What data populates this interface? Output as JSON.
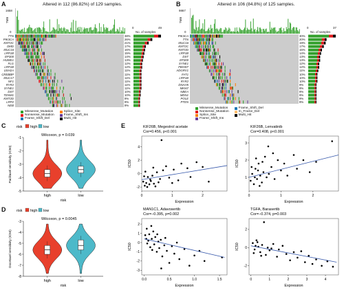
{
  "panelA": {
    "letter": "A",
    "title": "Altered in 112 (86.82%) of 129 samples.",
    "tmb_label": "TMB",
    "tmb_max": "1658",
    "tmb_zero": "0",
    "samples_zero": "0",
    "samples_max": "49",
    "samples_label": "No. of samples",
    "genes": [
      "TTN",
      "PIK3CA",
      "KMT2C",
      "DMD",
      "MUC16",
      "LRP1B",
      "EP300",
      "HUWE1",
      "FLG",
      "LRP1B",
      "USH2A",
      "CREBBP",
      "MUC17",
      "NF1",
      "RYR2",
      "SYNE1",
      "DST",
      "TENM1",
      "KMT2D",
      "LRP2",
      "NEB"
    ],
    "pcts": [
      "38%",
      "26%",
      "21%",
      "17%",
      "16%",
      "15%",
      "14%",
      "13%",
      "12%",
      "12%",
      "11%",
      "11%",
      "11%",
      "11%",
      "11%",
      "11%",
      "10%",
      "10%",
      "9%",
      "9%",
      "9%"
    ],
    "legend": [
      "Missense_Mutation",
      "Splice_Site",
      "Nonsense_Mutation",
      "Frame_Shift_Ins",
      "Frame_Shift_Del",
      "Multi_Hit"
    ]
  },
  "panelB": {
    "letter": "B",
    "title": "Altered in 106 (84.8%) of 125 samples.",
    "tmb_label": "TMB",
    "tmb_max": "9867",
    "tmb_zero": "0",
    "samples_zero": "0",
    "samples_max": "37",
    "samples_label": "No. of samples",
    "genes": [
      "PIK3CA",
      "TTN",
      "MUC16",
      "KMT2C",
      "KMT2D",
      "LRP1B",
      "DST",
      "EP300",
      "SYNE1",
      "FBXW7",
      "ADGRV1",
      "FAT1",
      "LRP1B",
      "RYR2",
      "DNAH5",
      "MKI67",
      "NBEA",
      "MDN1",
      "POLE",
      "PTEN"
    ],
    "pcts": [
      "30%",
      "20%",
      "19%",
      "17%",
      "15%",
      "14%",
      "13%",
      "13%",
      "12%",
      "12%",
      "11%",
      "10%",
      "10%",
      "10%",
      "9%",
      "9%",
      "9%",
      "9%",
      "9%",
      "9%"
    ],
    "legend": [
      "Missense_Mutation",
      "Frame_Shift_Del",
      "Nonsense_Mutation",
      "In_Frame_Del",
      "Splice_Site",
      "Multi_Hit",
      "Frame_Shift_Ins"
    ]
  },
  "colors": {
    "missense": "#33a02c",
    "nonsense": "#e31a1c",
    "splice": "#ff7f00",
    "frameshift_del": "#1f78b4",
    "frameshift_ins": "#6a3d9a",
    "multi_hit": "#000000",
    "inframe_del": "#fdbf6f",
    "bg": "#cccccc",
    "violin_high": "#e8402c",
    "violin_low": "#4db9c9",
    "regline": "#3355aa"
  },
  "panelC": {
    "letter": "C",
    "legend_title": "risk",
    "legend_items": [
      "high",
      "low"
    ],
    "stat": "Wilcoxon, p = 0.039",
    "ylabel": "Paclitaxel sensitivity (IC50)",
    "xlabel": "risk",
    "chart_data": {
      "type": "violin",
      "categories": [
        "high",
        "low"
      ],
      "medians": [
        -3.7,
        -3.4
      ],
      "q1": [
        -3.95,
        -3.65
      ],
      "q3": [
        -3.4,
        -3.15
      ],
      "ylim": [
        -5,
        -1
      ],
      "yticks": [
        "-1",
        "-2",
        "-3",
        "-4",
        "-5"
      ]
    }
  },
  "panelD": {
    "letter": "D",
    "legend_title": "risk",
    "legend_items": [
      "high",
      "low"
    ],
    "stat": "Wilcoxon, p = 0.0045",
    "ylabel": "Docetaxel sensitivity (IC50)",
    "xlabel": "risk",
    "chart_data": {
      "type": "violin",
      "categories": [
        "high",
        "low"
      ],
      "medians": [
        -5.6,
        -5.2
      ],
      "q1": [
        -6.0,
        -5.6
      ],
      "q3": [
        -5.2,
        -4.7
      ],
      "ylim": [
        -8,
        -3
      ],
      "yticks": [
        "-3",
        "-4",
        "-5",
        "-6",
        "-7",
        "-8"
      ]
    }
  },
  "panelE": {
    "letter": "E",
    "plots": [
      {
        "title1": "KIF26B, Megestrol acetate",
        "title2": "Cor=0.456, p<0.001",
        "xlabel": "Expression",
        "ylabel": "IC50",
        "chart_data": {
          "type": "scatter",
          "xticks": [
            "0",
            "1",
            "2"
          ],
          "yticks": [
            "-2",
            "0",
            "2",
            "4"
          ],
          "xlim": [
            0,
            2.8
          ],
          "ylim": [
            -2.6,
            5.6
          ],
          "points": [
            [
              0.05,
              -1.2
            ],
            [
              0.1,
              -1.8
            ],
            [
              0.15,
              -1.4
            ],
            [
              0.2,
              -0.5
            ],
            [
              0.25,
              -1.6
            ],
            [
              0.3,
              -1.1
            ],
            [
              0.35,
              -0.3
            ],
            [
              0.4,
              -1.5
            ],
            [
              0.5,
              0.2
            ],
            [
              0.55,
              -1.3
            ],
            [
              0.6,
              -0.8
            ],
            [
              0.7,
              0.5
            ],
            [
              0.8,
              1.1
            ],
            [
              0.9,
              -0.6
            ],
            [
              1.0,
              -1.4
            ],
            [
              1.05,
              0.6
            ],
            [
              1.2,
              -1.0
            ],
            [
              1.3,
              1.5
            ],
            [
              1.5,
              0.8
            ],
            [
              1.6,
              -0.5
            ],
            [
              1.8,
              1.7
            ],
            [
              2.0,
              1.0
            ],
            [
              2.2,
              -1.2
            ],
            [
              0.12,
              0.3
            ],
            [
              0.18,
              -2.0
            ],
            [
              0.45,
              -1.9
            ],
            [
              0.65,
              5.0
            ],
            [
              0.28,
              -0.9
            ],
            [
              0.38,
              0.9
            ],
            [
              0.08,
              -0.4
            ]
          ],
          "line": [
            [
              0,
              -0.9
            ],
            [
              2.8,
              1.2
            ]
          ]
        }
      },
      {
        "title1": "KIF26B, Lenvatinib",
        "title2": "Cor=0.408, p<0.001",
        "xlabel": "Expression",
        "ylabel": "IC50",
        "chart_data": {
          "type": "scatter",
          "xticks": [
            "0",
            "1",
            "2"
          ],
          "yticks": [
            "1",
            "2",
            "3"
          ],
          "xlim": [
            0,
            2.8
          ],
          "ylim": [
            0.2,
            3.4
          ],
          "points": [
            [
              0.05,
              0.8
            ],
            [
              0.1,
              1.2
            ],
            [
              0.15,
              0.6
            ],
            [
              0.2,
              1.5
            ],
            [
              0.25,
              0.9
            ],
            [
              0.3,
              1.8
            ],
            [
              0.35,
              1.1
            ],
            [
              0.4,
              0.7
            ],
            [
              0.45,
              1.3
            ],
            [
              0.5,
              2.2
            ],
            [
              0.55,
              1.0
            ],
            [
              0.6,
              2.8
            ],
            [
              0.7,
              1.6
            ],
            [
              0.8,
              0.9
            ],
            [
              0.9,
              2.0
            ],
            [
              1.0,
              1.4
            ],
            [
              1.1,
              1.8
            ],
            [
              1.2,
              1.1
            ],
            [
              1.4,
              2.3
            ],
            [
              1.5,
              1.5
            ],
            [
              1.7,
              2.0
            ],
            [
              1.9,
              1.3
            ],
            [
              2.1,
              1.9
            ],
            [
              2.6,
              3.1
            ],
            [
              0.08,
              1.6
            ],
            [
              0.22,
              2.1
            ],
            [
              0.33,
              0.5
            ],
            [
              0.42,
              1.9
            ],
            [
              0.62,
              1.2
            ],
            [
              0.75,
              2.4
            ],
            [
              0.18,
              1.0
            ],
            [
              0.28,
              1.4
            ]
          ],
          "line": [
            [
              0,
              1.0
            ],
            [
              2.8,
              2.3
            ]
          ]
        }
      },
      {
        "title1": "MAN1C1, Adavosertib",
        "title2": "Cor=−0.395, p=0.002",
        "xlabel": "Expression",
        "ylabel": "IC50",
        "chart_data": {
          "type": "scatter",
          "xticks": [
            "0.0",
            "0.5",
            "1.0",
            "1.5"
          ],
          "yticks": [
            "2",
            "1",
            "0",
            "-1",
            "-2",
            "-3"
          ],
          "xlim": [
            -0.05,
            1.65
          ],
          "ylim": [
            -3.5,
            2.6
          ],
          "points": [
            [
              0.02,
              0.8
            ],
            [
              0.05,
              1.5
            ],
            [
              0.08,
              0.2
            ],
            [
              0.1,
              0.9
            ],
            [
              0.12,
              -0.5
            ],
            [
              0.15,
              0.4
            ],
            [
              0.18,
              1.2
            ],
            [
              0.2,
              -0.2
            ],
            [
              0.22,
              0.6
            ],
            [
              0.25,
              -1.0
            ],
            [
              0.28,
              0.1
            ],
            [
              0.3,
              -0.6
            ],
            [
              0.33,
              0.3
            ],
            [
              0.36,
              -1.5
            ],
            [
              0.4,
              -0.3
            ],
            [
              0.45,
              -0.9
            ],
            [
              0.5,
              -2.2
            ],
            [
              0.55,
              -0.4
            ],
            [
              0.6,
              -1.2
            ],
            [
              0.65,
              0.0
            ],
            [
              0.7,
              -1.8
            ],
            [
              0.8,
              -0.7
            ],
            [
              0.9,
              -2.5
            ],
            [
              1.0,
              -1.4
            ],
            [
              1.1,
              -0.9
            ],
            [
              1.2,
              -2.0
            ],
            [
              1.55,
              -1.6
            ],
            [
              0.06,
              -0.1
            ],
            [
              0.14,
              1.8
            ],
            [
              0.26,
              0.9
            ],
            [
              0.34,
              -2.8
            ],
            [
              0.42,
              0.5
            ],
            [
              0.04,
              0.4
            ],
            [
              0.16,
              -0.8
            ]
          ],
          "line": [
            [
              0,
              0.4
            ],
            [
              1.6,
              -1.6
            ]
          ]
        }
      },
      {
        "title1": "TGFA, Barasertib",
        "title2": "Cor=−0.374, p=0.003",
        "xlabel": "Expression",
        "ylabel": "IC50",
        "chart_data": {
          "type": "scatter",
          "xticks": [
            "0",
            "1",
            "2",
            "3",
            "4"
          ],
          "yticks": [
            "2",
            "0",
            "-2"
          ],
          "xlim": [
            -0.1,
            4.7
          ],
          "ylim": [
            -3.0,
            3.2
          ],
          "points": [
            [
              0.1,
              0.5
            ],
            [
              0.2,
              -0.2
            ],
            [
              0.3,
              0.8
            ],
            [
              0.4,
              0.1
            ],
            [
              0.5,
              -0.5
            ],
            [
              0.6,
              0.3
            ],
            [
              0.7,
              2.8
            ],
            [
              0.8,
              -0.8
            ],
            [
              0.9,
              0.0
            ],
            [
              1.0,
              -0.3
            ],
            [
              1.2,
              0.4
            ],
            [
              1.4,
              -1.0
            ],
            [
              1.5,
              -0.2
            ],
            [
              1.7,
              0.2
            ],
            [
              1.9,
              -0.7
            ],
            [
              2.1,
              -1.4
            ],
            [
              2.3,
              -0.5
            ],
            [
              2.5,
              -1.1
            ],
            [
              2.7,
              -0.4
            ],
            [
              2.9,
              -1.6
            ],
            [
              3.1,
              -0.9
            ],
            [
              3.3,
              -1.8
            ],
            [
              3.5,
              -1.3
            ],
            [
              3.8,
              -2.0
            ],
            [
              4.1,
              -1.5
            ],
            [
              4.4,
              -2.1
            ],
            [
              0.15,
              -0.6
            ],
            [
              0.35,
              0.6
            ],
            [
              0.55,
              -0.9
            ],
            [
              0.25,
              0.2
            ],
            [
              1.1,
              -0.1
            ]
          ],
          "line": [
            [
              0,
              0.2
            ],
            [
              4.6,
              -1.6
            ]
          ]
        }
      }
    ]
  }
}
